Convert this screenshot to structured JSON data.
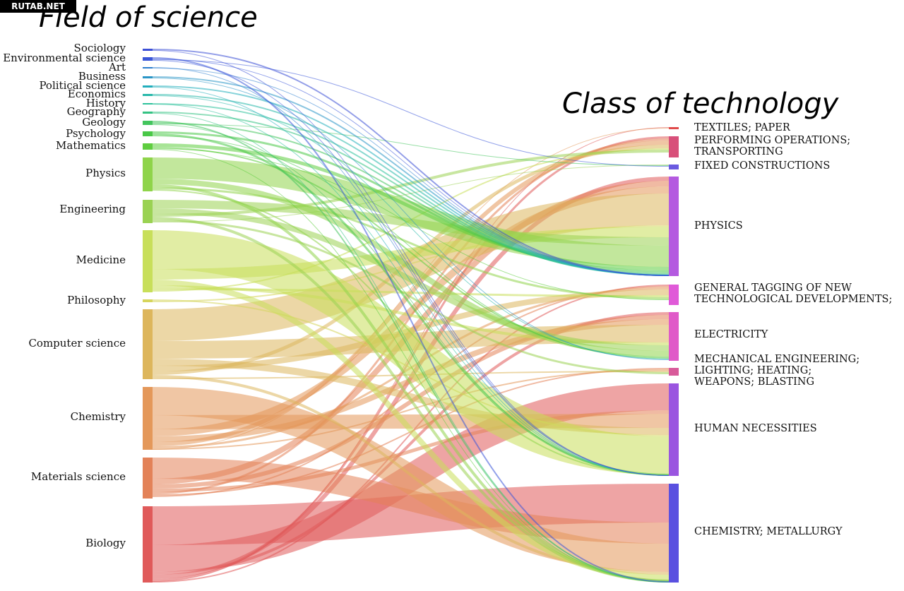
{
  "watermark": "RUTAB.NET",
  "titles": {
    "left": "Field of science",
    "right": "Class of technology"
  },
  "sources": [
    {
      "label": "Sociology",
      "color": "#3b4fd6"
    },
    {
      "label": "Environmental science",
      "color": "#3a56d8"
    },
    {
      "label": "Art",
      "color": "#2d7fcf"
    },
    {
      "label": "Business",
      "color": "#2a95c6"
    },
    {
      "label": "Political science",
      "color": "#22aebc"
    },
    {
      "label": "Economics",
      "color": "#28b8aa"
    },
    {
      "label": "History",
      "color": "#2cc19a"
    },
    {
      "label": "Geography",
      "color": "#34c283"
    },
    {
      "label": "Geology",
      "color": "#43c55d"
    },
    {
      "label": "Psychology",
      "color": "#4ac848"
    },
    {
      "label": "Mathematics",
      "color": "#5fcd40"
    },
    {
      "label": "Physics",
      "color": "#8fd44a"
    },
    {
      "label": "Engineering",
      "color": "#9ad252"
    },
    {
      "label": "Medicine",
      "color": "#c8df5a"
    },
    {
      "label": "Philosophy",
      "color": "#d6d55c"
    },
    {
      "label": "Computer science",
      "color": "#ddb65c"
    },
    {
      "label": "Chemistry",
      "color": "#e4985a"
    },
    {
      "label": "Materials science",
      "color": "#e38258"
    },
    {
      "label": "Biology",
      "color": "#e05a5a"
    }
  ],
  "targets": [
    {
      "label_lines": [
        "TEXTILES; PAPER"
      ],
      "color": "#e04a4a"
    },
    {
      "label_lines": [
        "PERFORMING OPERATIONS;",
        "TRANSPORTING"
      ],
      "color": "#d8507a"
    },
    {
      "label_lines": [
        "FIXED CONSTRUCTIONS"
      ],
      "color": "#6a5ae0"
    },
    {
      "label_lines": [
        "PHYSICS"
      ],
      "color": "#b45ae0"
    },
    {
      "label_lines": [
        "GENERAL TAGGING OF NEW",
        "TECHNOLOGICAL DEVELOPMENTS;"
      ],
      "color": "#e05ad8"
    },
    {
      "label_lines": [
        "ELECTRICITY"
      ],
      "color": "#e05ac8"
    },
    {
      "label_lines": [
        "MECHANICAL ENGINEERING;",
        "LIGHTING; HEATING;",
        "WEAPONS; BLASTING"
      ],
      "color": "#d85a9a"
    },
    {
      "label_lines": [
        "HUMAN NECESSITIES"
      ],
      "color": "#9a55e0"
    },
    {
      "label_lines": [
        "CHEMISTRY; METALLURGY"
      ],
      "color": "#5a50e0"
    }
  ]
}
